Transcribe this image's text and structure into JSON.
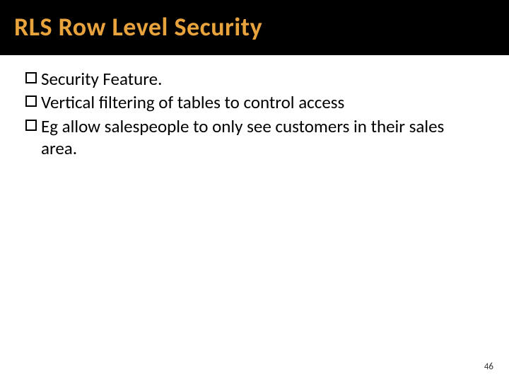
{
  "slide": {
    "title": "RLS Row Level Security",
    "title_color": "#e8a33d",
    "title_bg": "#000000",
    "title_fontsize": 36,
    "body_fontsize": 25,
    "body_color": "#000000",
    "background_color": "#ffffff",
    "bullets": [
      "Security Feature.",
      "Vertical filtering of tables to control access",
      "Eg allow salespeople to only see customers in their sales area."
    ],
    "page_number": "46",
    "page_number_fontsize": 13
  }
}
